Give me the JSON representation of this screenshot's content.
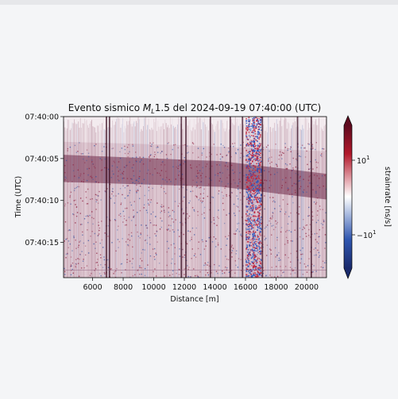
{
  "chart_data": {
    "type": "heatmap",
    "title_main": "Evento sismico ",
    "title_mag_symbol": "M",
    "title_mag_sub": "L",
    "title_rest": "1.5 del 2024-09-19 07:40:00 (UTC)",
    "xlabel": "Distance [m]",
    "ylabel": "Time (UTC)",
    "xlim": [
      4100,
      21300
    ],
    "ylim_seconds": [
      0,
      19.2
    ],
    "x_ticks": [
      6000,
      8000,
      10000,
      12000,
      14000,
      16000,
      18000,
      20000
    ],
    "x_tick_labels": [
      "6000",
      "8000",
      "10000",
      "12000",
      "14000",
      "16000",
      "18000",
      "20000"
    ],
    "y_ticks_seconds": [
      0,
      5,
      10,
      15
    ],
    "y_tick_labels": [
      "07:40:00",
      "07:40:05",
      "07:40:10",
      "07:40:15"
    ],
    "colorbar": {
      "label": "strainrate [ns/s]",
      "colormap": "seismic-like diverging (dark blue - white - dark red)",
      "ticks": [
        {
          "value": 10,
          "label_base": "10",
          "label_exp": "1"
        },
        {
          "value": -10,
          "label_base": "−10",
          "label_exp": "1"
        }
      ],
      "extend": "both"
    },
    "features": {
      "noisy_band_x": [
        16000,
        17000
      ],
      "dark_traces_x": [
        6900,
        7100,
        11800,
        12100,
        13700,
        15000,
        15800,
        17100,
        19400,
        20300
      ],
      "wavefront_arrival_seconds": 3.0,
      "strong_band_seconds": [
        5.5,
        7.8
      ]
    },
    "colors": {
      "red": "#8b1a3a",
      "blue": "#3050a0",
      "background": "#f2e9ee"
    }
  }
}
